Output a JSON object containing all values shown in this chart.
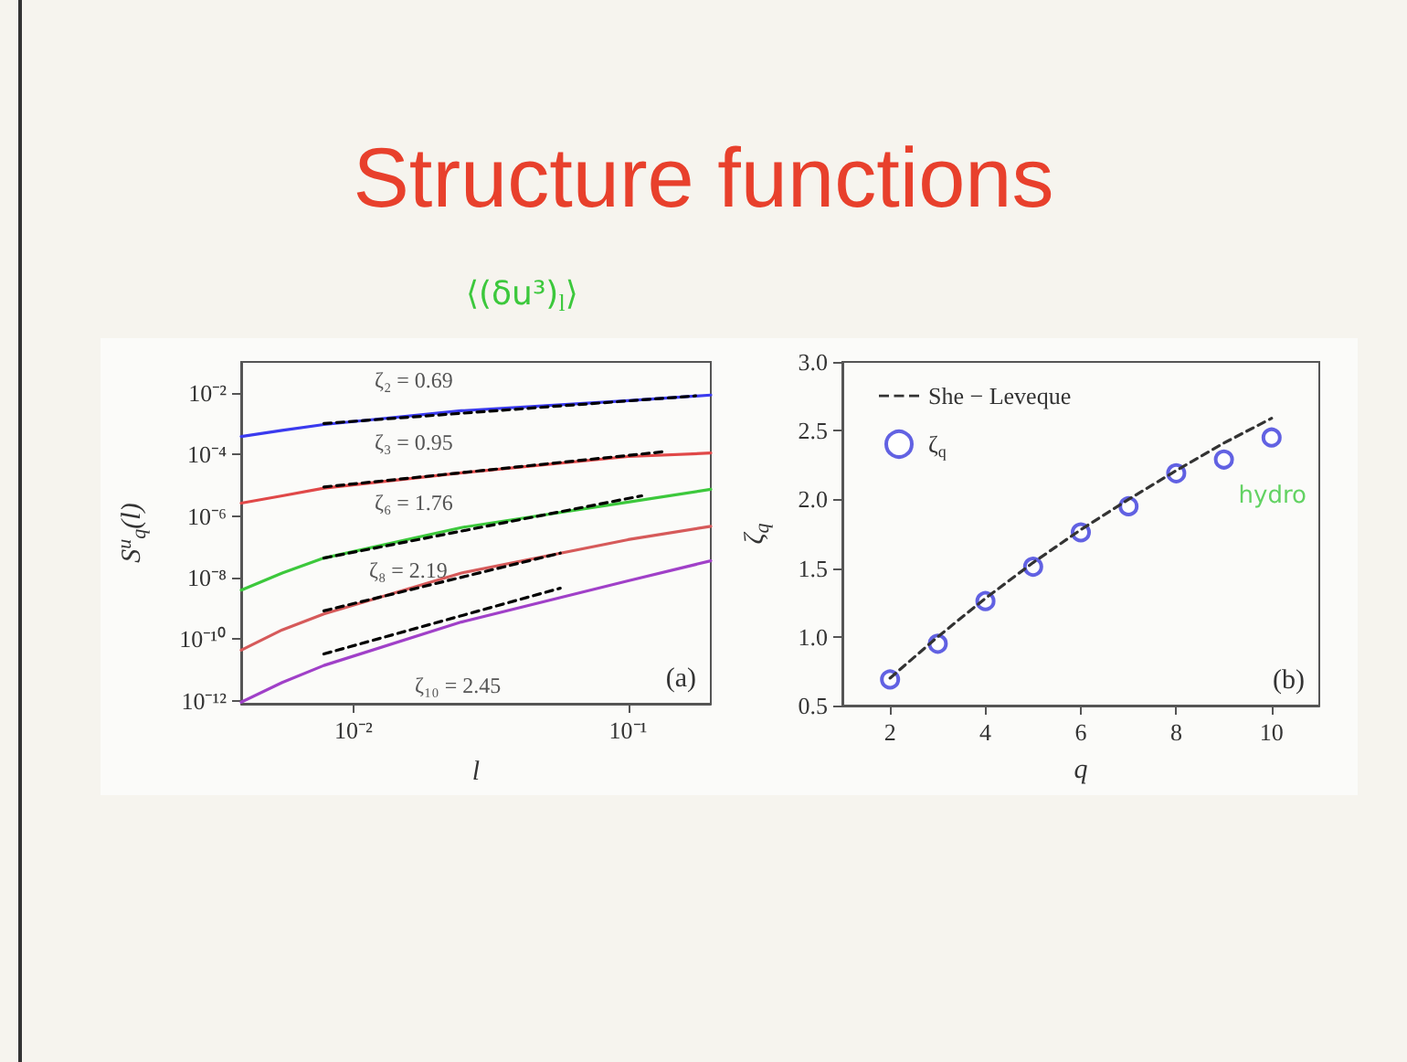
{
  "chart_data": [
    {
      "type": "line",
      "title": "Structure functions",
      "xlabel": "l",
      "ylabel": "S$^{u}$$_{q}$(l)",
      "log": "xy",
      "xlim": [
        0.0039,
        0.2
      ],
      "ylim": [
        8e-13,
        0.1
      ],
      "xticks": [
        {
          "value": 0.01,
          "label": "10⁻²"
        },
        {
          "value": 0.1,
          "label": "10⁻¹"
        }
      ],
      "yticks": [
        {
          "value": 1e-12,
          "label": "10⁻¹²"
        },
        {
          "value": 1e-10,
          "label": "10⁻¹⁰"
        },
        {
          "value": 1e-08,
          "label": "10⁻⁸"
        },
        {
          "value": 1e-06,
          "label": "10⁻⁶"
        },
        {
          "value": 0.0001,
          "label": "10⁻⁴"
        },
        {
          "value": 0.01,
          "label": "10⁻²"
        }
      ],
      "grid": false,
      "legend": false,
      "marker": "none",
      "series": [
        {
          "color": "#3a3aee",
          "line_style": "solid",
          "x": [
            0.0039,
            0.0055,
            0.0078,
            0.0247,
            0.1,
            0.2
          ],
          "values": [
            0.00038,
            0.0006,
            0.00093,
            0.0026,
            0.0055,
            0.0084
          ]
        },
        {
          "color": "#e04848",
          "line_style": "solid",
          "x": [
            0.0039,
            0.0055,
            0.0078,
            0.0247,
            0.1,
            0.2
          ],
          "values": [
            2.6e-06,
            4.5e-06,
            8e-06,
            2.5e-05,
            8.5e-05,
            0.00011
          ]
        },
        {
          "color": "#3cc83c",
          "line_style": "solid",
          "x": [
            0.0039,
            0.0055,
            0.0078,
            0.0247,
            0.1,
            0.2
          ],
          "values": [
            3.9e-09,
            1.4e-08,
            4.3e-08,
            4.2e-07,
            2.8e-06,
            7.3e-06
          ]
        },
        {
          "color": "#d65a5a",
          "line_style": "solid",
          "x": [
            0.0039,
            0.0055,
            0.0078,
            0.0247,
            0.1,
            0.2
          ],
          "values": [
            4.4e-11,
            2e-10,
            6.6e-10,
            1.4e-08,
            1.7e-07,
            4.6e-07
          ]
        },
        {
          "color": "#a040c8",
          "line_style": "solid",
          "x": [
            0.0039,
            0.0055,
            0.0078,
            0.0247,
            0.1,
            0.2
          ],
          "values": [
            9e-13,
            3.9e-12,
            1.4e-11,
            3.6e-10,
            7.8e-09,
            3.5e-08
          ]
        },
        {
          "color": "#000000",
          "line_style": "dashed",
          "x": [
            0.0078,
            0.176
          ],
          "values": [
            0.001,
            0.0079
          ]
        },
        {
          "color": "#000000",
          "line_style": "dashed",
          "x": [
            0.0078,
            0.133
          ],
          "values": [
            8.7e-06,
            0.00012
          ]
        },
        {
          "color": "#000000",
          "line_style": "dashed",
          "x": [
            0.0078,
            0.112
          ],
          "values": [
            4.3e-08,
            4.5e-06
          ]
        },
        {
          "color": "#000000",
          "line_style": "dashed",
          "x": [
            0.0078,
            0.0566
          ],
          "values": [
            8.3e-10,
            6.2e-08
          ]
        },
        {
          "color": "#000000",
          "line_style": "dashed",
          "x": [
            0.0078,
            0.0566
          ],
          "values": [
            3.3e-11,
            4.5e-09
          ]
        }
      ],
      "annotations": [
        "ζ₂ = 0.69",
        "ζ₃ = 0.95",
        "ζ₆ = 1.76",
        "ζ₈ = 2.19",
        "ζ₁₀ = 2.45",
        "(a)",
        "⟨(δu³)$_{l}$⟩"
      ]
    },
    {
      "type": "scatter",
      "xlabel": "q",
      "ylabel": "ζ$_{q}$",
      "xlim": [
        1,
        11
      ],
      "xticks": [
        2,
        4,
        6,
        8,
        10
      ],
      "ylim": [
        0.5,
        3.0
      ],
      "yticks": [
        0.5,
        {
          "value": 1,
          "label": "1.0"
        },
        1.5,
        {
          "value": 2,
          "label": "2.0"
        },
        2.5,
        {
          "value": 3,
          "label": "3.0"
        }
      ],
      "grid": false,
      "legend": "top left",
      "marker": "circle",
      "series": [
        {
          "name": "She − Leveque",
          "type": "line",
          "line_style": "dashed",
          "marker": "none",
          "color": "#333333",
          "x": [
            2,
            3,
            4,
            5,
            6,
            7,
            8,
            9,
            10
          ],
          "values": [
            0.7,
            1.0,
            1.28,
            1.54,
            1.78,
            2.0,
            2.21,
            2.41,
            2.59
          ]
        },
        {
          "name": "ζ$_{q}$",
          "type": "scatter",
          "color": "#3b3bdc",
          "x": [
            2,
            3,
            4,
            5,
            6,
            7,
            8,
            9,
            10
          ],
          "values": [
            0.69,
            0.95,
            1.26,
            1.51,
            1.76,
            1.95,
            2.19,
            2.29,
            2.45
          ]
        }
      ],
      "annotations": [
        "(b)",
        {
          "text": "hydro",
          "x": 9,
          "y": 2.29
        }
      ]
    }
  ]
}
